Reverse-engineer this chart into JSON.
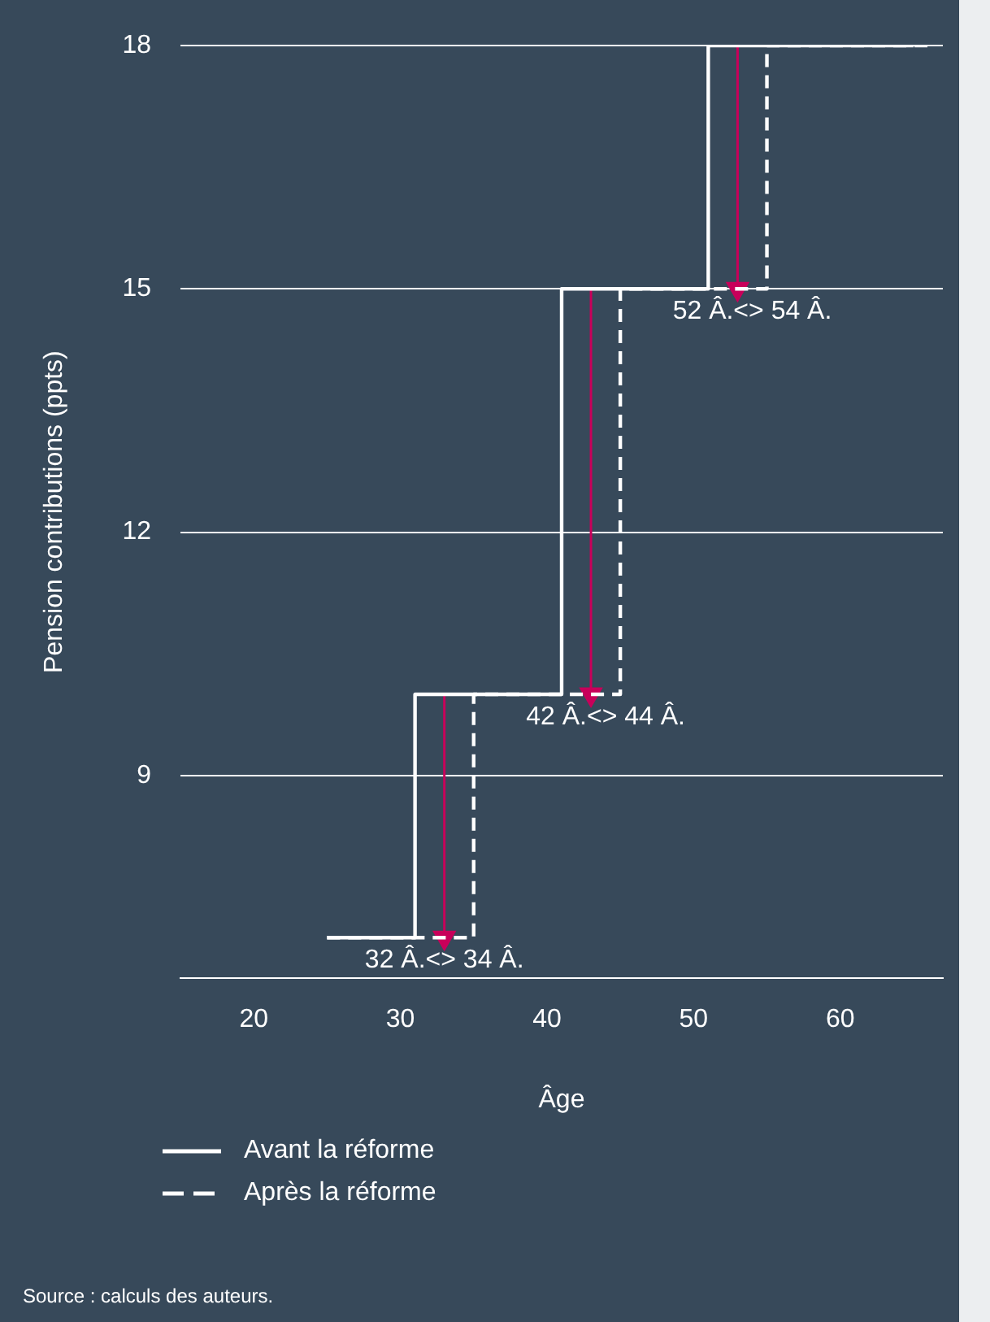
{
  "chart_data": {
    "type": "step",
    "xlabel": "Âge",
    "ylabel": "Pension contributions (ppts)",
    "series": [
      {
        "name": "Avant la réforme",
        "color": "#ffffff",
        "line_style": "solid",
        "x": [
          25,
          31,
          41,
          51,
          65
        ],
        "values": [
          7,
          10,
          15,
          18,
          18
        ]
      },
      {
        "name": "Après la réforme",
        "color": "#ffffff",
        "line_style": "dashed",
        "x": [
          25,
          35,
          45,
          55,
          66
        ],
        "values": [
          7,
          10,
          15,
          18,
          18
        ]
      },
      {
        "type": "line",
        "color": "#c8005a",
        "marker": "triangle",
        "x": [
          33,
          33
        ],
        "values": [
          10,
          7
        ]
      },
      {
        "type": "line",
        "color": "#c8005a",
        "marker": "triangle",
        "x": [
          43,
          43
        ],
        "values": [
          15,
          10
        ]
      },
      {
        "type": "line",
        "color": "#c8005a",
        "marker": "triangle",
        "x": [
          53,
          53
        ],
        "values": [
          18,
          15
        ]
      }
    ],
    "xlim": [
      15,
      67
    ],
    "xticks": [
      20,
      30,
      40,
      50,
      60
    ],
    "ylim": [
      6.5,
      18
    ],
    "yticks": [
      9,
      12,
      15,
      18
    ],
    "grid": "y",
    "legend": "bottom",
    "marker": "none",
    "annotations": [
      {
        "text": "32 Â.<> 34 Â.",
        "x": 33,
        "y": 7
      },
      {
        "text": "42 Â.<> 44 Â.",
        "x": 44,
        "y": 10
      },
      {
        "text": "52 Â.<> 54 Â.",
        "x": 54,
        "y": 15
      },
      "Source : calculs des auteurs."
    ]
  }
}
